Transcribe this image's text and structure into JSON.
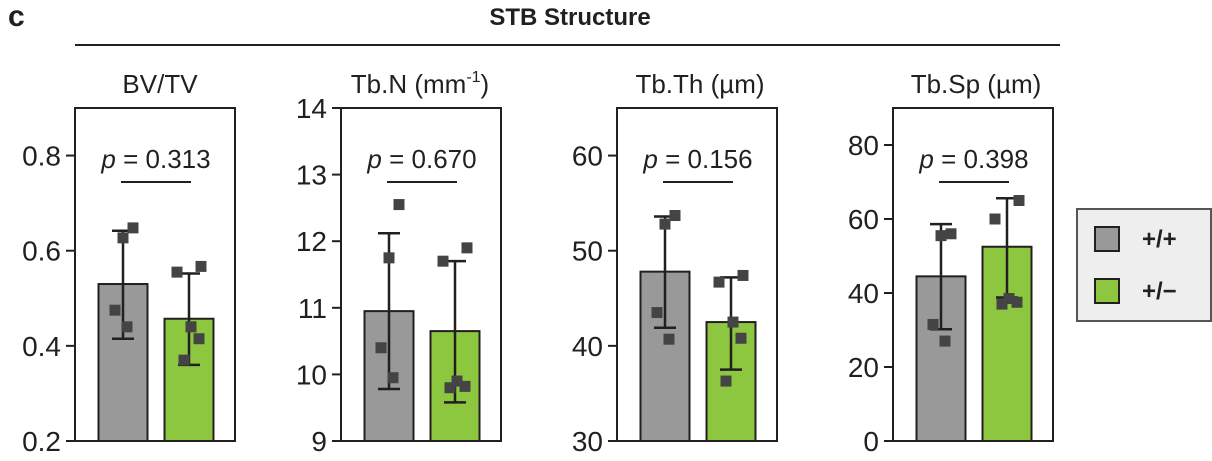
{
  "panel_label": "c",
  "figure_title": "STB Structure",
  "legend": {
    "items": [
      {
        "label": "+/+",
        "color": "#999999"
      },
      {
        "label": "+/−",
        "color": "#8dc63f"
      }
    ]
  },
  "chart_data": [
    {
      "type": "bar",
      "title": "BV/TV",
      "title_superscript": "",
      "categories": [
        "+/+",
        "+/−"
      ],
      "series": [
        {
          "values": [
            0.53,
            0.457
          ]
        }
      ],
      "error_bars": [
        [
          0.415,
          0.642
        ],
        [
          0.36,
          0.552
        ]
      ],
      "points": [
        [
          0.648,
          0.627,
          0.475,
          0.44
        ],
        [
          0.567,
          0.555,
          0.44,
          0.415,
          0.37
        ]
      ],
      "yticks": [
        0.2,
        0.4,
        0.6,
        0.8
      ],
      "ytick_labels": [
        "0.2",
        "0.4",
        "0.6",
        "0.8"
      ],
      "ylim": [
        0.2,
        0.9
      ],
      "annotation": {
        "p_label": "p",
        "p_value": "= 0.313"
      },
      "colors": [
        "#999999",
        "#8dc63f"
      ]
    },
    {
      "type": "bar",
      "title": "Tb.N (mm",
      "title_superscript": "-1",
      "title_suffix": ")",
      "categories": [
        "+/+",
        "+/−"
      ],
      "series": [
        {
          "values": [
            10.95,
            10.65
          ]
        }
      ],
      "error_bars": [
        [
          9.78,
          12.12
        ],
        [
          9.58,
          11.7
        ]
      ],
      "points": [
        [
          12.55,
          11.75,
          10.4,
          9.95
        ],
        [
          11.9,
          11.7,
          9.9,
          9.82,
          9.8
        ]
      ],
      "yticks": [
        9,
        10,
        11,
        12,
        13,
        14
      ],
      "ytick_labels": [
        "9",
        "10",
        "11",
        "12",
        "13",
        "14"
      ],
      "ylim": [
        9,
        14
      ],
      "annotation": {
        "p_label": "p",
        "p_value": "= 0.670"
      },
      "colors": [
        "#999999",
        "#8dc63f"
      ]
    },
    {
      "type": "bar",
      "title": "Tb.Th (µm)",
      "title_superscript": "",
      "categories": [
        "+/+",
        "+/−"
      ],
      "series": [
        {
          "values": [
            47.8,
            42.5
          ]
        }
      ],
      "error_bars": [
        [
          41.9,
          53.6
        ],
        [
          37.5,
          47.2
        ]
      ],
      "points": [
        [
          53.7,
          52.8,
          43.5,
          40.7
        ],
        [
          47.4,
          46.7,
          42.5,
          40.8,
          36.3
        ]
      ],
      "yticks": [
        30,
        40,
        50,
        60
      ],
      "ytick_labels": [
        "30",
        "40",
        "50",
        "60"
      ],
      "ylim": [
        30,
        65
      ],
      "annotation": {
        "p_label": "p",
        "p_value": "= 0.156"
      },
      "colors": [
        "#999999",
        "#8dc63f"
      ]
    },
    {
      "type": "bar",
      "title": "Tb.Sp (µm)",
      "title_superscript": "",
      "categories": [
        "+/+",
        "+/−"
      ],
      "series": [
        {
          "values": [
            44.5,
            52.5
          ]
        }
      ],
      "error_bars": [
        [
          30.2,
          58.6
        ],
        [
          38.8,
          65.6
        ]
      ],
      "points": [
        [
          56,
          55.5,
          31.5,
          27
        ],
        [
          65,
          60,
          38.5,
          37.5,
          37
        ]
      ],
      "yticks": [
        0,
        20,
        40,
        60,
        80
      ],
      "ytick_labels": [
        "0",
        "20",
        "40",
        "60",
        "80"
      ],
      "ylim": [
        0,
        90
      ],
      "annotation": {
        "p_label": "p",
        "p_value": "= 0.398"
      },
      "colors": [
        "#999999",
        "#8dc63f"
      ]
    }
  ]
}
